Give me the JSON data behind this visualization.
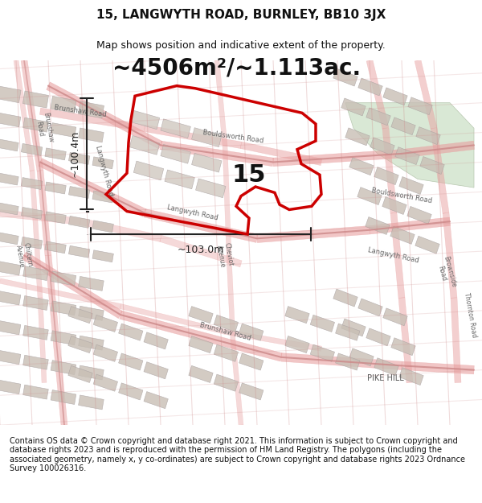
{
  "title": "15, LANGWYTH ROAD, BURNLEY, BB10 3JX",
  "subtitle": "Map shows position and indicative extent of the property.",
  "area_text": "~4506m²/~1.113ac.",
  "label_number": "15",
  "dim_vertical": "~100.4m",
  "dim_horizontal": "~103.0m",
  "footer": "Contains OS data © Crown copyright and database right 2021. This information is subject to Crown copyright and database rights 2023 and is reproduced with the permission of HM Land Registry. The polygons (including the associated geometry, namely x, y co-ordinates) are subject to Crown copyright and database rights 2023 Ordnance Survey 100026316.",
  "bg_map_color": "#f2ede8",
  "bg_green_color": "#d9e8d5",
  "road_color": "#e8a0a0",
  "building_color": "#d0c8c0",
  "property_color": "#cc0000",
  "dim_color": "#222222",
  "title_fontsize": 11,
  "subtitle_fontsize": 9,
  "area_fontsize": 22,
  "label_fontsize": 22,
  "footer_fontsize": 7
}
